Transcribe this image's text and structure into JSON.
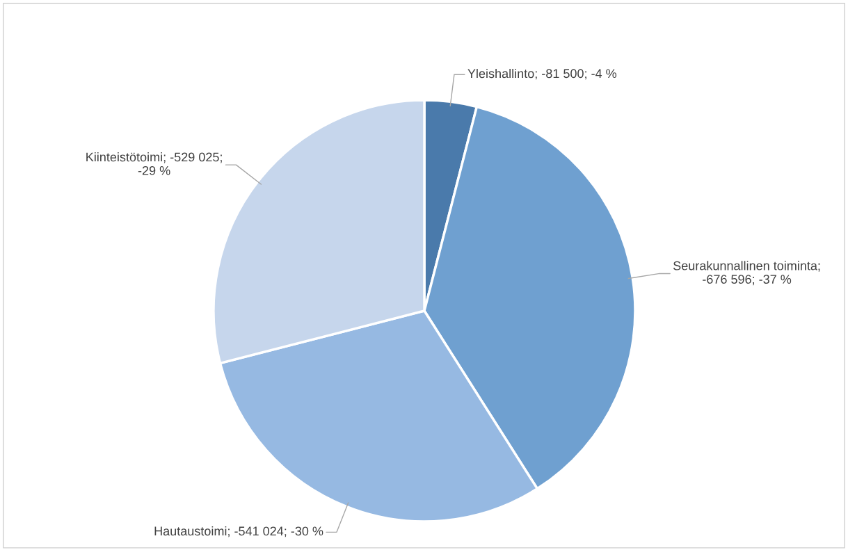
{
  "chart_data": {
    "type": "pie",
    "categories": [
      "Yleishallinto; -81 500; -4 %",
      "Seurakunnallinen toiminta; -676 596; -37 %",
      "Hautaustoimi; -541 024; -30 %",
      "Kiinteistötoimi; -529 025; -29 %"
    ],
    "values": [
      4,
      37,
      30,
      29
    ],
    "colors": [
      "#4a7aab",
      "#6fa0d0",
      "#96b9e2",
      "#c6d6ec"
    ]
  }
}
